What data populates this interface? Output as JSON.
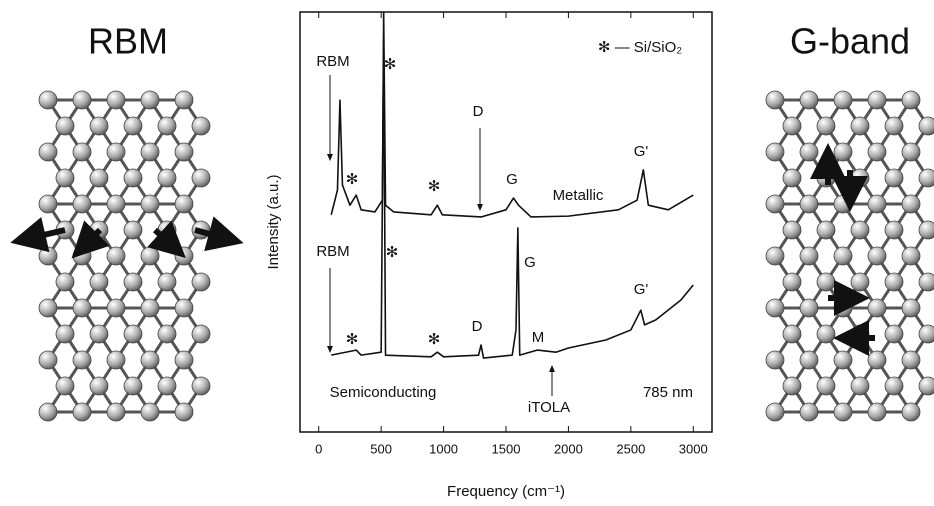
{
  "chart_data": {
    "type": "line",
    "headings": [
      "RBM",
      "G-band"
    ],
    "xlabel": "Frequency (cm⁻¹)",
    "ylabel": "Intensity (a.u.)",
    "xlim": [
      -150,
      3150
    ],
    "xticks": [
      0,
      500,
      1000,
      1500,
      2000,
      2500,
      3000
    ],
    "ylim": [
      0,
      100
    ],
    "yticks": [],
    "legend_text": "✻ — Si/SiO₂",
    "excitation": "785 nm",
    "annotations": [
      "RBM",
      "✻",
      "✻",
      "✻",
      "D",
      "G",
      "G'",
      "RBM",
      "✻",
      "✻",
      "✻",
      "D",
      "G",
      "M",
      "G'",
      "iTOLA"
    ],
    "series": [
      {
        "name": "Metallic",
        "color": "#111111",
        "x": [
          100,
          150,
          170,
          190,
          250,
          300,
          340,
          450,
          510,
          520,
          535,
          600,
          900,
          950,
          990,
          1300,
          1500,
          1560,
          1600,
          1700,
          2000,
          2400,
          2550,
          2600,
          2640,
          2800,
          3000
        ],
        "values": [
          51.7,
          57.6,
          79,
          58.8,
          54,
          56.4,
          52.9,
          52.4,
          55.2,
          100,
          54,
          52.4,
          51.7,
          54,
          51.7,
          51.2,
          52.9,
          55.7,
          54,
          51.2,
          51.4,
          52.9,
          55.2,
          62.4,
          54,
          52.9,
          56.4
        ]
      },
      {
        "name": "Semiconducting",
        "color": "#111111",
        "x": [
          100,
          300,
          340,
          500,
          520,
          535,
          900,
          950,
          1000,
          1280,
          1300,
          1320,
          1550,
          1580,
          1595,
          1610,
          1750,
          1900,
          2000,
          2300,
          2500,
          2580,
          2610,
          2700,
          2900,
          3000
        ],
        "values": [
          18.3,
          19.5,
          18.3,
          19,
          93.3,
          18.3,
          17.9,
          19,
          17.9,
          18.3,
          20.7,
          17.6,
          18.3,
          24.3,
          48.6,
          18.3,
          19.5,
          19,
          20,
          21.9,
          24.3,
          29,
          25.5,
          26.7,
          31.4,
          35
        ]
      }
    ]
  }
}
